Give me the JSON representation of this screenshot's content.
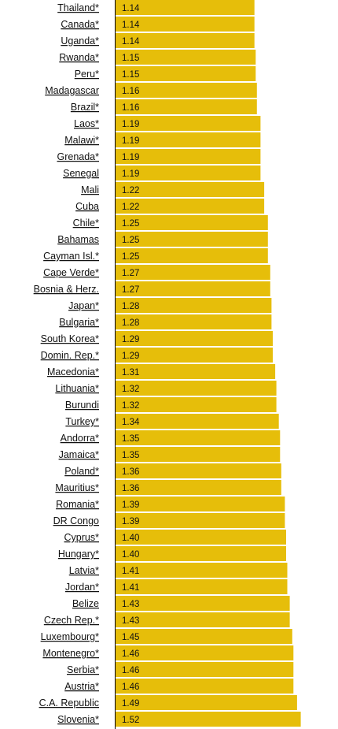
{
  "chart_data": {
    "type": "bar",
    "orientation": "horizontal",
    "bar_color": "#E6BE0A",
    "axis_color": "#000000",
    "label_color": "#111111",
    "xlim": [
      0,
      1.6
    ],
    "categories": [
      "Thailand*",
      "Canada*",
      "Uganda*",
      "Rwanda*",
      "Peru*",
      "Madagascar",
      "Brazil*",
      "Laos*",
      "Malawi*",
      "Grenada*",
      "Senegal",
      "Mali",
      "Cuba",
      "Chile*",
      "Bahamas",
      "Cayman Isl.*",
      "Cape Verde*",
      "Bosnia & Herz.",
      "Japan*",
      "Bulgaria*",
      "South Korea*",
      "Domin. Rep.*",
      "Macedonia*",
      "Lithuania*",
      "Burundi",
      "Turkey*",
      "Andorra*",
      "Jamaica*",
      "Poland*",
      "Mauritius*",
      "Romania*",
      "DR Congo",
      "Cyprus*",
      "Hungary*",
      "Latvia*",
      "Jordan*",
      "Belize",
      "Czech Rep.*",
      "Luxembourg*",
      "Montenegro*",
      "Serbia*",
      "Austria*",
      "C.A. Republic",
      "Slovenia*"
    ],
    "values": [
      1.14,
      1.14,
      1.14,
      1.15,
      1.15,
      1.16,
      1.16,
      1.19,
      1.19,
      1.19,
      1.19,
      1.22,
      1.22,
      1.25,
      1.25,
      1.25,
      1.27,
      1.27,
      1.28,
      1.28,
      1.29,
      1.29,
      1.31,
      1.32,
      1.32,
      1.34,
      1.35,
      1.35,
      1.36,
      1.36,
      1.39,
      1.39,
      1.4,
      1.4,
      1.41,
      1.41,
      1.43,
      1.43,
      1.45,
      1.46,
      1.46,
      1.46,
      1.49,
      1.52
    ],
    "value_labels": [
      "1.14",
      "1.14",
      "1.14",
      "1.15",
      "1.15",
      "1.16",
      "1.16",
      "1.19",
      "1.19",
      "1.19",
      "1.19",
      "1.22",
      "1.22",
      "1.25",
      "1.25",
      "1.25",
      "1.27",
      "1.27",
      "1.28",
      "1.28",
      "1.29",
      "1.29",
      "1.31",
      "1.32",
      "1.32",
      "1.34",
      "1.35",
      "1.35",
      "1.36",
      "1.36",
      "1.39",
      "1.39",
      "1.40",
      "1.40",
      "1.41",
      "1.41",
      "1.43",
      "1.43",
      "1.45",
      "1.46",
      "1.46",
      "1.46",
      "1.49",
      "1.52"
    ]
  }
}
